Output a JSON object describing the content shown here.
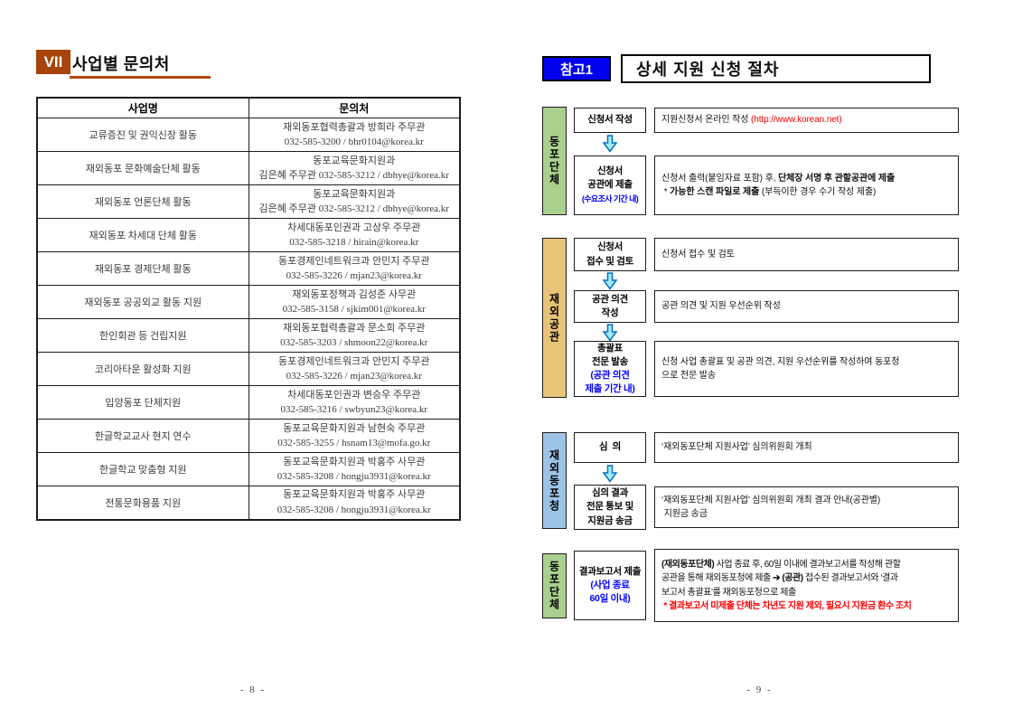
{
  "left": {
    "badge": "VII",
    "title": "사업별 문의처",
    "table": {
      "headers": [
        "사업명",
        "문의처"
      ],
      "rows": [
        {
          "name": "교류증진 및 권익신장 활동",
          "contact1": "재외동포협력총괄과 방희라 주무관",
          "contact2": "032-585-3200 / bhr0104@korea.kr"
        },
        {
          "name": "재외동포 문화예술단체 활동",
          "contact1": "동포교육문화지원과",
          "contact2": "김은혜 주무관 032-585-3212 / dbhye@korea.kr"
        },
        {
          "name": "재외동포 언론단체 활동",
          "contact1": "동포교육문화지원과",
          "contact2": "김은혜 주무관 032-585-3212 / dbhye@korea.kr"
        },
        {
          "name": "재외동포 차세대 단체 활동",
          "contact1": "차세대동포인권과 고상우 주무관",
          "contact2": "032-585-3218 / hirain@korea.kr"
        },
        {
          "name": "재외동포 경제단체 활동",
          "contact1": "동포경제인네트워크과 안민지 주무관",
          "contact2": "032-585-3226 / mjan23@korea.kr"
        },
        {
          "name": "재외동포 공공외교 활동 지원",
          "contact1": "재외동포정책과 김성준 사무관",
          "contact2": "032-585-3158 / sjkim001@korea.kr"
        },
        {
          "name": "한인회관 등 건립지원",
          "contact1": "재외동포협력총괄과 문소희 주무관",
          "contact2": "032-585-3203 / shmoon22@korea.kr"
        },
        {
          "name": "코리아타운 활성화 지원",
          "contact1": "동포경제인네트워크과 안민지 주무관",
          "contact2": "032-585-3226 / mjan23@korea.kr"
        },
        {
          "name": "입양동포 단체지원",
          "contact1": "차세대동포인권과 변승우 주무관",
          "contact2": "032-585-3216 / swbyun23@korea.kr"
        },
        {
          "name": "한글학교교사 현지 연수",
          "contact1": "동포교육문화지원과 남현숙 주무관",
          "contact2": "032-585-3255 / hsnam13@mofa.go.kr"
        },
        {
          "name": "한글학교 맞춤형 지원",
          "contact1": "동포교육문화지원과 박홍주 사무관",
          "contact2": "032-585-3208 / hongju3931@korea.kr"
        },
        {
          "name": "전통문화용품 지원",
          "contact1": "동포교육문화지원과 박홍주 사무관",
          "contact2": "032-585-3208 / hongju3931@korea.kr"
        }
      ]
    },
    "page_number": "- 8 -"
  },
  "right": {
    "badge": "참고1",
    "title": "상세 지원 신청 절차",
    "flow": {
      "sections": [
        {
          "actor": "동포단체",
          "color": "#A9D08E",
          "rows": [
            {
              "box": [
                {
                  "t": "신청서 작성"
                }
              ],
              "desc": [
                {
                  "t": "지원신청서 온라인 작성 "
                },
                {
                  "t": "(http://www.korean.net)",
                  "c": "#FF0000"
                }
              ]
            },
            {
              "box": [
                {
                  "t": "신청서\n공관에 제출\n"
                },
                {
                  "t": "(수요조사 기간 내)",
                  "c": "#0000FF",
                  "s": 1
                }
              ],
              "desc": [
                {
                  "t": "신청서 출력(붙임자료 포함) 후, "
                },
                {
                  "t": "단체장 서명 후 관할공관에 제출",
                  "b": 1
                },
                {
                  "t": "\n * "
                },
                {
                  "t": "가능한 스캔 파일로 제출",
                  "b": 1
                },
                {
                  "t": " (부득이한 경우 수기 작성 제출)"
                }
              ]
            }
          ]
        },
        {
          "actor": "재외공관",
          "color": "#E8C478",
          "rows": [
            {
              "box": [
                {
                  "t": "신청서\n접수 및 검토"
                }
              ],
              "desc": [
                {
                  "t": "신청서 접수 및 검토"
                }
              ]
            },
            {
              "box": [
                {
                  "t": "공관 의견\n작성"
                }
              ],
              "desc": [
                {
                  "t": "공관 의견 및 지원 우선순위 작성"
                }
              ]
            },
            {
              "box": [
                {
                  "t": "총괄표\n전문 발송\n"
                },
                {
                  "t": "(공관 의견\n제출 기간 내)",
                  "c": "#0000FF"
                }
              ],
              "desc": [
                {
                  "t": "신청 사업 총괄표 및 공관 의견, 지원 우선순위를 작성하여 동포청\n으로 전문 발송"
                }
              ]
            }
          ]
        },
        {
          "actor": "재외동포청",
          "color": "#9DC3E6",
          "rows": [
            {
              "box": [
                {
                  "t": "심  의"
                }
              ],
              "desc": [
                {
                  "t": "‘재외동포단체 지원사업’ 심의위원회 개최"
                }
              ]
            },
            {
              "box": [
                {
                  "t": "심의 결과\n전문 통보 및\n지원금 송금"
                }
              ],
              "desc": [
                {
                  "t": "‘재외동포단체 지원사업’ 심의위원회 개최 결과 안내(공관별)\n 지원금 송금"
                }
              ]
            }
          ]
        },
        {
          "actor": "동포단체",
          "color": "#A9D08E",
          "rows": [
            {
              "box": [
                {
                  "t": "결과보고서 제출\n"
                },
                {
                  "t": "(사업 종료\n60일 이내)",
                  "c": "#0000FF"
                }
              ],
              "desc": [
                {
                  "t": "(재외동포단체)",
                  "b": 1
                },
                {
                  "t": " 사업 종료 후, 60일 이내에 결과보고서를 작성해 관할\n공관을 통해 재외동포청에 제출 "
                },
                {
                  "t": "➔",
                  "b": 1
                },
                {
                  "t": " "
                },
                {
                  "t": "(공관)",
                  "b": 1
                },
                {
                  "t": " 접수된 결과보고서와 ‘결과\n보고서 총괄표’를 재외동포청으로 제출\n"
                },
                {
                  "t": " * 결과보고서 미제출 단체는 차년도 지원 제외, 필요시 지원금 환수 조치",
                  "c": "#FF0000",
                  "b": 1
                }
              ]
            }
          ]
        }
      ]
    },
    "page_number": "- 9 -"
  },
  "colors": {
    "badge_left_bg": "#A8430B",
    "title_underline": "#B5470B",
    "badge_right_bg": "#0000F0",
    "actor_green": "#A9D08E",
    "actor_tan": "#E8C478",
    "actor_blue": "#9DC3E6",
    "arrow_fill": "#A6E9F9",
    "arrow_stroke": "#0070C0",
    "text_blue": "#0000FF",
    "text_red": "#FF0000"
  },
  "icons": {
    "flow_arrow": "⇩"
  }
}
